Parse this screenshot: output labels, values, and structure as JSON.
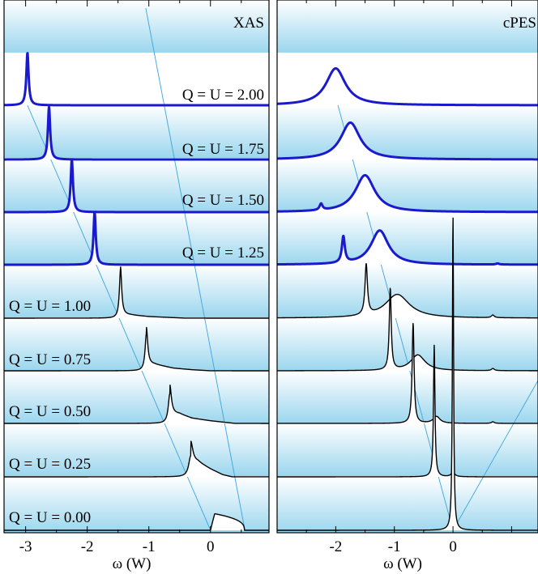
{
  "chart_data": [
    {
      "type": "line",
      "panel": "XAS",
      "title": "XAS",
      "xlabel": "ω (W)",
      "x_ticks": [
        -3,
        -2,
        -1,
        0
      ],
      "xlim": [
        -3.35,
        0.95
      ],
      "series": [
        {
          "label": "Q = U = 2.00",
          "color": "#1a1acc",
          "peaks": [
            {
              "x": -2.97,
              "h": 1.0,
              "w": 0.022
            }
          ]
        },
        {
          "label": "Q = U = 1.75",
          "color": "#1a1acc",
          "peaks": [
            {
              "x": -2.62,
              "h": 1.0,
              "w": 0.022
            }
          ]
        },
        {
          "label": "Q = U = 1.50",
          "color": "#1a1acc",
          "peaks": [
            {
              "x": -2.25,
              "h": 1.0,
              "w": 0.022
            }
          ]
        },
        {
          "label": "Q = U = 1.25",
          "color": "#1a1acc",
          "peaks": [
            {
              "x": -1.88,
              "h": 1.0,
              "w": 0.022
            }
          ]
        },
        {
          "label": "Q = U = 1.00",
          "color": "#000000",
          "peaks": [
            {
              "x": -1.46,
              "h": 0.92,
              "w": 0.022
            }
          ],
          "tail": [
            {
              "x": -1.3,
              "y": 0.06
            },
            {
              "x": -1.0,
              "y": 0.03
            },
            {
              "x": -0.7,
              "y": 0.015
            },
            {
              "x": -0.4,
              "y": 0.0
            }
          ]
        },
        {
          "label": "Q = U = 0.75",
          "color": "#000000",
          "peaks": [
            {
              "x": -1.04,
              "h": 0.71,
              "w": 0.025
            }
          ],
          "tail": [
            {
              "x": -0.9,
              "y": 0.12
            },
            {
              "x": -0.6,
              "y": 0.05
            },
            {
              "x": -0.3,
              "y": 0.02
            },
            {
              "x": 0.0,
              "y": 0.0
            }
          ]
        },
        {
          "label": "Q = U = 0.50",
          "color": "#000000",
          "peaks": [
            {
              "x": -0.66,
              "h": 0.56,
              "w": 0.03
            }
          ],
          "tail": [
            {
              "x": -0.5,
              "y": 0.18
            },
            {
              "x": -0.3,
              "y": 0.1
            },
            {
              "x": 0.0,
              "y": 0.05
            },
            {
              "x": 0.4,
              "y": 0.0
            }
          ]
        },
        {
          "label": "Q = U = 0.25",
          "color": "#000000",
          "peaks": [
            {
              "x": -0.32,
              "h": 0.4,
              "w": 0.04
            }
          ],
          "tail": [
            {
              "x": -0.2,
              "y": 0.28
            },
            {
              "x": 0.0,
              "y": 0.15
            },
            {
              "x": 0.2,
              "y": 0.04
            },
            {
              "x": 0.35,
              "y": 0.0
            }
          ]
        },
        {
          "label": "Q = U = 0.00",
          "color": "#000000",
          "band": {
            "lo": 0.0,
            "hi": 0.55,
            "h": 0.33
          }
        }
      ]
    },
    {
      "type": "line",
      "panel": "cPES",
      "title": "cPES",
      "xlabel": "ω (W)",
      "x_ticks": [
        -2,
        -1,
        0
      ],
      "xlim": [
        -3.0,
        1.45
      ],
      "series": [
        {
          "label": "Q = U = 2.00",
          "color": "#1a1acc",
          "peaks": [
            {
              "x": -2.0,
              "h": 0.7,
              "w": 0.2
            }
          ]
        },
        {
          "label": "Q = U = 1.75",
          "color": "#1a1acc",
          "peaks": [
            {
              "x": -1.75,
              "h": 0.7,
              "w": 0.2
            }
          ]
        },
        {
          "label": "Q = U = 1.50",
          "color": "#1a1acc",
          "peaks": [
            {
              "x": -1.5,
              "h": 0.7,
              "w": 0.2
            },
            {
              "x": -2.25,
              "h": 0.12,
              "w": 0.03
            }
          ]
        },
        {
          "label": "Q = U = 1.25",
          "color": "#1a1acc",
          "peaks": [
            {
              "x": -1.25,
              "h": 0.65,
              "w": 0.18
            },
            {
              "x": -1.87,
              "h": 0.5,
              "w": 0.03
            },
            {
              "x": 0.76,
              "h": 0.02,
              "w": 0.03
            }
          ]
        },
        {
          "label": "Q = U = 1.00",
          "color": "#000000",
          "peaks": [
            {
              "x": -1.48,
              "h": 0.96,
              "w": 0.025
            },
            {
              "x": -0.95,
              "h": 0.45,
              "w": 0.25
            },
            {
              "x": 0.68,
              "h": 0.05,
              "w": 0.03
            }
          ]
        },
        {
          "label": "Q = U = 0.75",
          "color": "#000000",
          "peaks": [
            {
              "x": -1.07,
              "h": 1.55,
              "w": 0.02
            },
            {
              "x": -0.6,
              "h": 0.3,
              "w": 0.15
            },
            {
              "x": 0.68,
              "h": 0.04,
              "w": 0.03
            }
          ]
        },
        {
          "label": "Q = U = 0.50",
          "color": "#000000",
          "peaks": [
            {
              "x": -0.68,
              "h": 1.9,
              "w": 0.02
            },
            {
              "x": -0.28,
              "h": 0.13,
              "w": 0.07
            },
            {
              "x": 0.68,
              "h": 0.03,
              "w": 0.03
            }
          ]
        },
        {
          "label": "Q = U = 0.25",
          "color": "#000000",
          "peaks": [
            {
              "x": -0.32,
              "h": 2.5,
              "w": 0.015
            },
            {
              "x": 0.0,
              "h": 0.08,
              "w": 0.04
            }
          ]
        },
        {
          "label": "Q = U = 0.00",
          "color": "#000000",
          "peaks": [
            {
              "x": 0.0,
              "h": 6.0,
              "w": 0.012
            }
          ]
        }
      ]
    }
  ]
}
